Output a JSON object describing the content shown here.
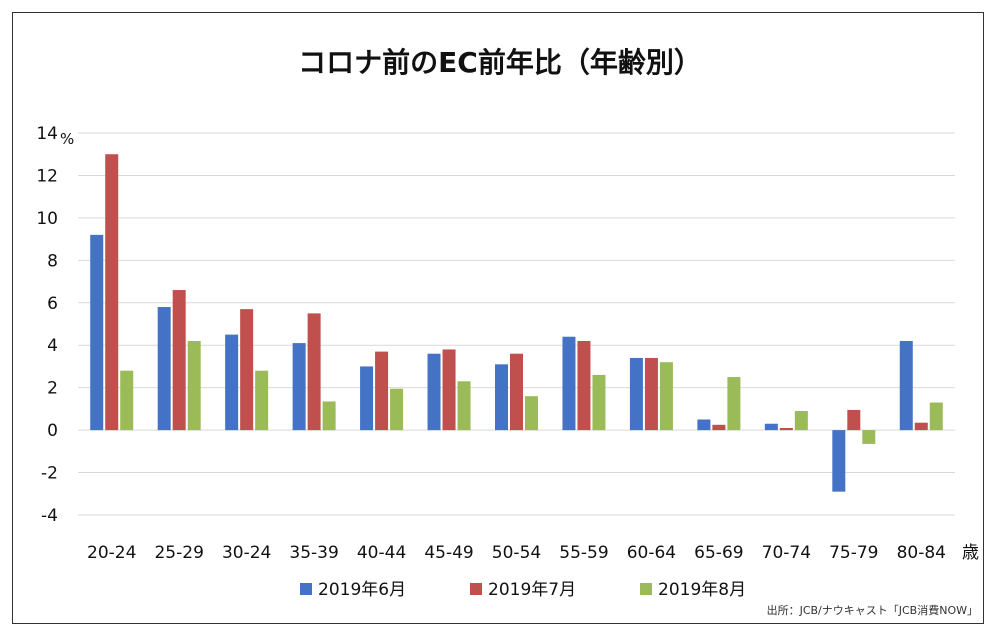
{
  "chart_data": {
    "type": "bar",
    "title": "コロナ前のEC前年比（年齢別）",
    "y_unit": "%",
    "x_unit": "歳",
    "ylim": [
      -4,
      14
    ],
    "yticks": [
      "-4",
      "-2",
      "0",
      "2",
      "4",
      "6",
      "8",
      "10",
      "12",
      "14"
    ],
    "grid": true,
    "legend_placement": "bottom",
    "categories": [
      "20-24",
      "25-29",
      "30-24",
      "35-39",
      "40-44",
      "45-49",
      "50-54",
      "55-59",
      "60-64",
      "65-69",
      "70-74",
      "75-79",
      "80-84"
    ],
    "series": [
      {
        "name": "2019年6月",
        "color": "#4472c4",
        "values": [
          9.2,
          5.8,
          4.5,
          4.1,
          3.0,
          3.6,
          3.1,
          4.4,
          3.4,
          0.5,
          0.3,
          -2.9,
          4.2
        ]
      },
      {
        "name": "2019年7月",
        "color": "#c0504d",
        "values": [
          13.0,
          6.6,
          5.7,
          5.5,
          3.7,
          3.8,
          3.6,
          4.2,
          3.4,
          0.25,
          0.1,
          0.95,
          0.35
        ]
      },
      {
        "name": "2019年8月",
        "color": "#9bbb59",
        "values": [
          2.8,
          4.2,
          2.8,
          1.35,
          1.95,
          2.3,
          1.6,
          2.6,
          3.2,
          2.5,
          0.9,
          -0.65,
          1.3
        ]
      }
    ],
    "source": "出所：JCB/ナウキャスト「JCB消費NOW」"
  }
}
